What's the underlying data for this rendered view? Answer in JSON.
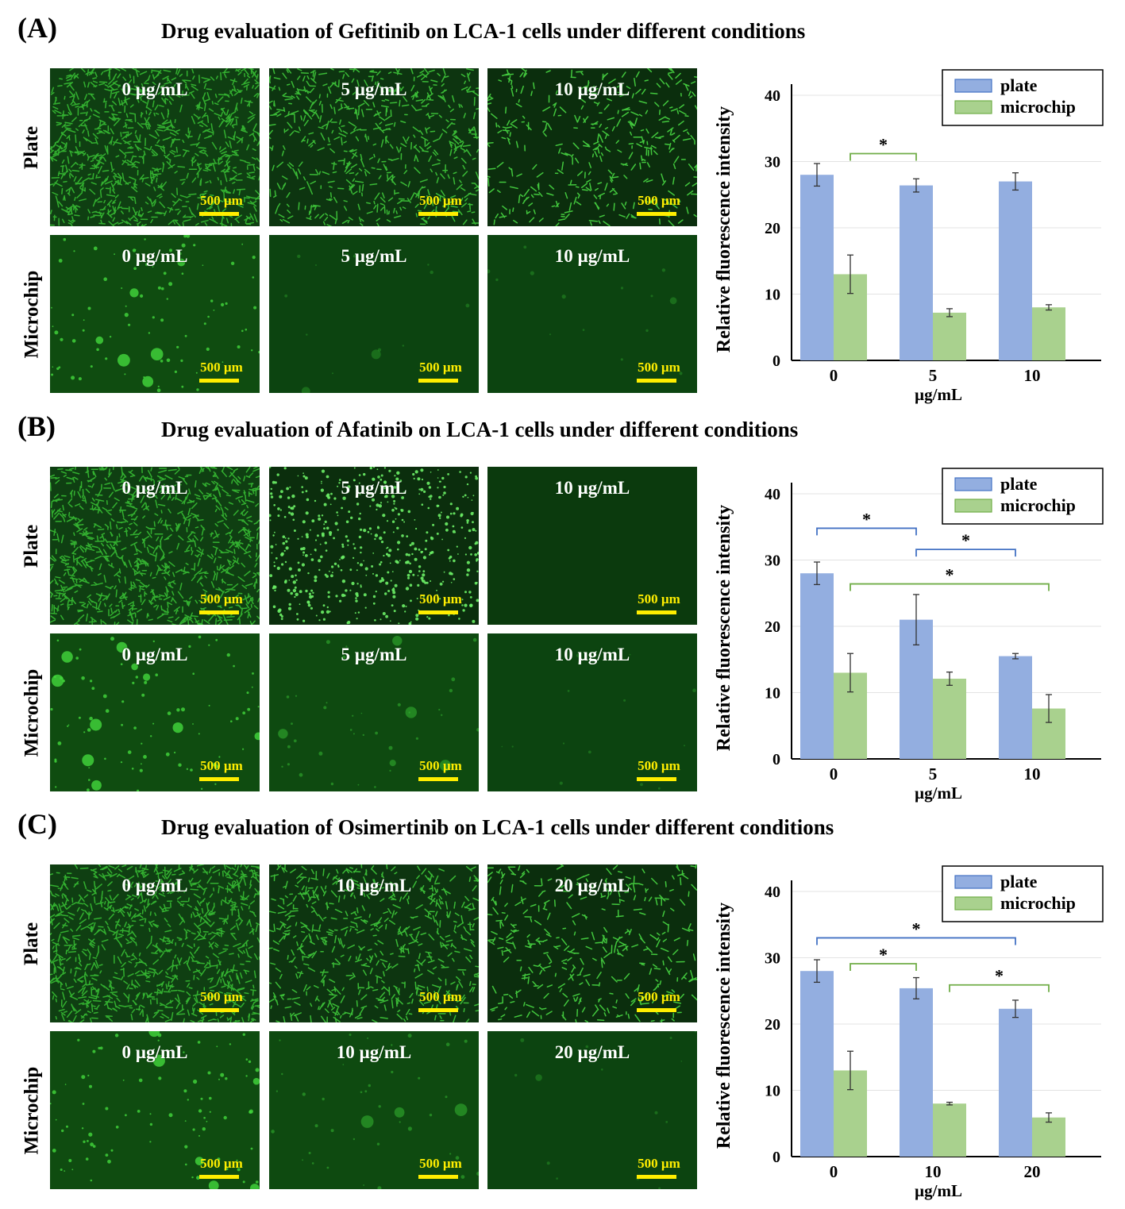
{
  "panels": [
    {
      "letter": "(A)",
      "title": "Drug evaluation of Gefitinib on LCA-1 cells under different conditions",
      "row_labels": [
        "Plate",
        "Microchip"
      ],
      "images": [
        [
          {
            "conc": "0 µg/mL",
            "scale": "500 µm",
            "kind": "plate-dense"
          },
          {
            "conc": "5 µg/mL",
            "scale": "500 µm",
            "kind": "plate-med"
          },
          {
            "conc": "10 µg/mL",
            "scale": "500 µm",
            "kind": "plate-sparse"
          }
        ],
        [
          {
            "conc": "0 µg/mL",
            "scale": "500 µm",
            "kind": "chip-bright"
          },
          {
            "conc": "5 µg/mL",
            "scale": "500 µm",
            "kind": "chip-dim"
          },
          {
            "conc": "10 µg/mL",
            "scale": "500 µm",
            "kind": "chip-dim"
          }
        ]
      ]
    },
    {
      "letter": "(B)",
      "title": "Drug evaluation of Afatinib on LCA-1 cells under different conditions",
      "row_labels": [
        "Plate",
        "Microchip"
      ],
      "images": [
        [
          {
            "conc": "0 µg/mL",
            "scale": "500 µm",
            "kind": "plate-dense"
          },
          {
            "conc": "5 µg/mL",
            "scale": "500 µm",
            "kind": "plate-dots"
          },
          {
            "conc": "10 µg/mL",
            "scale": "500 µm",
            "kind": "plate-empty"
          }
        ],
        [
          {
            "conc": "0 µg/mL",
            "scale": "500 µm",
            "kind": "chip-bright"
          },
          {
            "conc": "5 µg/mL",
            "scale": "500 µm",
            "kind": "chip-mid"
          },
          {
            "conc": "10 µg/mL",
            "scale": "500 µm",
            "kind": "chip-dim"
          }
        ]
      ]
    },
    {
      "letter": "(C)",
      "title": "Drug evaluation of Osimertinib on LCA-1 cells under different conditions",
      "row_labels": [
        "Plate",
        "Microchip"
      ],
      "images": [
        [
          {
            "conc": "0 µg/mL",
            "scale": "500 µm",
            "kind": "plate-dense"
          },
          {
            "conc": "10 µg/mL",
            "scale": "500 µm",
            "kind": "plate-med"
          },
          {
            "conc": "20 µg/mL",
            "scale": "500 µm",
            "kind": "plate-sparse"
          }
        ],
        [
          {
            "conc": "0 µg/mL",
            "scale": "500 µm",
            "kind": "chip-bright"
          },
          {
            "conc": "10 µg/mL",
            "scale": "500 µm",
            "kind": "chip-mid"
          },
          {
            "conc": "20 µg/mL",
            "scale": "500 µm",
            "kind": "chip-dim"
          }
        ]
      ]
    }
  ],
  "colors": {
    "plate": "#93aee0",
    "microchip": "#a9d18e",
    "plate_bracket": "#4472c4",
    "microchip_bracket": "#70ad47",
    "scale_bar": "#ffee00"
  },
  "chart_data": [
    {
      "type": "bar",
      "categories": [
        "0",
        "5",
        "10"
      ],
      "xlabel": "µg/mL",
      "ylabel": "Relative fluorescence intensity",
      "ylim": [
        0,
        40
      ],
      "yticks": [
        "0",
        "10",
        "20",
        "30",
        "40"
      ],
      "legend": "top-right",
      "series": [
        {
          "name": "plate",
          "values": [
            28.0,
            26.4,
            27.0
          ],
          "errors": [
            1.7,
            1.0,
            1.3
          ]
        },
        {
          "name": "microchip",
          "values": [
            13.0,
            7.2,
            8.0
          ],
          "errors": [
            2.9,
            0.6,
            0.4
          ]
        }
      ],
      "significance": [
        {
          "label": "*",
          "from": [
            0,
            "microchip"
          ],
          "to": [
            1,
            "plate"
          ],
          "level": 31.2,
          "color": "microchip_bracket"
        }
      ]
    },
    {
      "type": "bar",
      "categories": [
        "0",
        "5",
        "10"
      ],
      "xlabel": "µg/mL",
      "ylabel": "Relative fluorescence intensity",
      "ylim": [
        0,
        40
      ],
      "yticks": [
        "0",
        "10",
        "20",
        "30",
        "40"
      ],
      "legend": "top-right",
      "series": [
        {
          "name": "plate",
          "values": [
            28.0,
            21.0,
            15.5
          ],
          "errors": [
            1.7,
            3.8,
            0.4
          ]
        },
        {
          "name": "microchip",
          "values": [
            13.0,
            12.1,
            7.6
          ],
          "errors": [
            2.9,
            1.0,
            2.1
          ]
        }
      ],
      "significance": [
        {
          "label": "*",
          "from": [
            0,
            "plate"
          ],
          "to": [
            1,
            "plate"
          ],
          "level": 34.8,
          "color": "plate_bracket"
        },
        {
          "label": "*",
          "from": [
            1,
            "plate"
          ],
          "to": [
            2,
            "plate"
          ],
          "level": 31.6,
          "color": "plate_bracket"
        },
        {
          "label": "*",
          "from": [
            0,
            "microchip"
          ],
          "to": [
            2,
            "microchip"
          ],
          "level": 26.4,
          "color": "microchip_bracket"
        }
      ]
    },
    {
      "type": "bar",
      "categories": [
        "0",
        "10",
        "20"
      ],
      "xlabel": "µg/mL",
      "ylabel": "Relative fluorescence intensity",
      "ylim": [
        0,
        40
      ],
      "yticks": [
        "0",
        "10",
        "20",
        "30",
        "40"
      ],
      "legend": "top-right",
      "series": [
        {
          "name": "plate",
          "values": [
            28.0,
            25.4,
            22.3
          ],
          "errors": [
            1.7,
            1.6,
            1.3
          ]
        },
        {
          "name": "microchip",
          "values": [
            13.0,
            8.0,
            5.9
          ],
          "errors": [
            2.9,
            0.2,
            0.7
          ]
        }
      ],
      "significance": [
        {
          "label": "*",
          "from": [
            0,
            "plate"
          ],
          "to": [
            2,
            "plate"
          ],
          "level": 33.0,
          "color": "plate_bracket"
        },
        {
          "label": "*",
          "from": [
            0,
            "microchip"
          ],
          "to": [
            1,
            "plate"
          ],
          "level": 29.1,
          "color": "microchip_bracket"
        },
        {
          "label": "*",
          "from": [
            1,
            "microchip"
          ],
          "to": [
            2,
            "microchip"
          ],
          "level": 25.9,
          "color": "microchip_bracket"
        }
      ]
    }
  ]
}
